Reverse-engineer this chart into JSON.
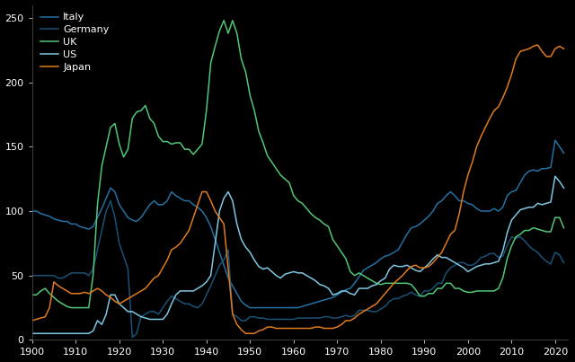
{
  "background_color": "#000000",
  "text_color": "#ffffff",
  "legend": {
    "US": "#7ec8e3",
    "Germany": "#1a5276",
    "Japan": "#e07b20",
    "Italy": "#2471a3",
    "UK": "#50c878"
  },
  "xlim": [
    1900,
    2023
  ],
  "ylim": [
    0,
    260
  ],
  "yticks": [
    0,
    50,
    100,
    150,
    200,
    250
  ],
  "xticks": [
    1900,
    1910,
    1920,
    1930,
    1940,
    1950,
    1960,
    1970,
    1980,
    1990,
    2000,
    2010,
    2020
  ],
  "series": {
    "US": {
      "years": [
        1900,
        1901,
        1902,
        1903,
        1904,
        1905,
        1906,
        1907,
        1908,
        1909,
        1910,
        1911,
        1912,
        1913,
        1914,
        1915,
        1916,
        1917,
        1918,
        1919,
        1920,
        1921,
        1922,
        1923,
        1924,
        1925,
        1926,
        1927,
        1928,
        1929,
        1930,
        1931,
        1932,
        1933,
        1934,
        1935,
        1936,
        1937,
        1938,
        1939,
        1940,
        1941,
        1942,
        1943,
        1944,
        1945,
        1946,
        1947,
        1948,
        1949,
        1950,
        1951,
        1952,
        1953,
        1954,
        1955,
        1956,
        1957,
        1958,
        1959,
        1960,
        1961,
        1962,
        1963,
        1964,
        1965,
        1966,
        1967,
        1968,
        1969,
        1970,
        1971,
        1972,
        1973,
        1974,
        1975,
        1976,
        1977,
        1978,
        1979,
        1980,
        1981,
        1982,
        1983,
        1984,
        1985,
        1986,
        1987,
        1988,
        1989,
        1990,
        1991,
        1992,
        1993,
        1994,
        1995,
        1996,
        1997,
        1998,
        1999,
        2000,
        2001,
        2002,
        2003,
        2004,
        2005,
        2006,
        2007,
        2008,
        2009,
        2010,
        2011,
        2012,
        2013,
        2014,
        2015,
        2016,
        2017,
        2018,
        2019,
        2020,
        2021,
        2022
      ],
      "values": [
        5,
        5,
        5,
        5,
        5,
        5,
        5,
        5,
        5,
        5,
        5,
        5,
        5,
        5,
        7,
        15,
        12,
        20,
        35,
        35,
        28,
        25,
        22,
        22,
        20,
        18,
        17,
        16,
        16,
        16,
        16,
        20,
        28,
        35,
        38,
        38,
        38,
        38,
        40,
        42,
        45,
        50,
        75,
        100,
        110,
        115,
        108,
        90,
        78,
        72,
        68,
        62,
        57,
        55,
        56,
        53,
        50,
        48,
        51,
        52,
        53,
        52,
        52,
        50,
        48,
        46,
        43,
        42,
        40,
        35,
        36,
        38,
        38,
        36,
        35,
        40,
        40,
        40,
        42,
        43,
        46,
        48,
        55,
        58,
        57,
        57,
        58,
        56,
        54,
        53,
        56,
        59,
        63,
        66,
        64,
        64,
        62,
        60,
        58,
        56,
        53,
        55,
        57,
        58,
        59,
        59,
        60,
        61,
        69,
        83,
        93,
        97,
        101,
        102,
        103,
        103,
        106,
        105,
        106,
        107,
        127,
        123,
        118
      ]
    },
    "Germany": {
      "years": [
        1900,
        1901,
        1902,
        1903,
        1904,
        1905,
        1906,
        1907,
        1908,
        1909,
        1910,
        1911,
        1912,
        1913,
        1914,
        1915,
        1916,
        1917,
        1918,
        1919,
        1920,
        1921,
        1922,
        1923,
        1924,
        1925,
        1926,
        1927,
        1928,
        1929,
        1930,
        1931,
        1932,
        1933,
        1934,
        1935,
        1936,
        1937,
        1938,
        1939,
        1940,
        1941,
        1942,
        1943,
        1944,
        1945,
        1946,
        1947,
        1948,
        1949,
        1950,
        1951,
        1952,
        1953,
        1954,
        1955,
        1956,
        1957,
        1958,
        1959,
        1960,
        1961,
        1962,
        1963,
        1964,
        1965,
        1966,
        1967,
        1968,
        1969,
        1970,
        1971,
        1972,
        1973,
        1974,
        1975,
        1976,
        1977,
        1978,
        1979,
        1980,
        1981,
        1982,
        1983,
        1984,
        1985,
        1986,
        1987,
        1988,
        1989,
        1990,
        1991,
        1992,
        1993,
        1994,
        1995,
        1996,
        1997,
        1998,
        1999,
        2000,
        2001,
        2002,
        2003,
        2004,
        2005,
        2006,
        2007,
        2008,
        2009,
        2010,
        2011,
        2012,
        2013,
        2014,
        2015,
        2016,
        2017,
        2018,
        2019,
        2020,
        2021,
        2022
      ],
      "values": [
        50,
        50,
        50,
        50,
        50,
        50,
        48,
        48,
        50,
        52,
        52,
        52,
        52,
        50,
        55,
        70,
        85,
        100,
        108,
        95,
        75,
        65,
        55,
        2,
        5,
        18,
        20,
        22,
        22,
        20,
        25,
        30,
        34,
        32,
        30,
        28,
        28,
        26,
        25,
        28,
        35,
        42,
        50,
        58,
        62,
        70,
        20,
        18,
        15,
        15,
        18,
        18,
        17,
        17,
        16,
        16,
        16,
        16,
        16,
        16,
        16,
        17,
        17,
        17,
        17,
        17,
        17,
        18,
        18,
        17,
        17,
        18,
        19,
        18,
        19,
        23,
        23,
        23,
        22,
        22,
        24,
        26,
        30,
        32,
        32,
        34,
        35,
        37,
        35,
        34,
        38,
        38,
        40,
        44,
        44,
        52,
        56,
        58,
        60,
        60,
        58,
        58,
        60,
        64,
        65,
        67,
        67,
        64,
        65,
        73,
        80,
        79,
        80,
        77,
        73,
        70,
        68,
        64,
        61,
        59,
        68,
        66,
        60
      ]
    },
    "Japan": {
      "years": [
        1900,
        1901,
        1902,
        1903,
        1904,
        1905,
        1906,
        1907,
        1908,
        1909,
        1910,
        1911,
        1912,
        1913,
        1914,
        1915,
        1916,
        1917,
        1918,
        1919,
        1920,
        1921,
        1922,
        1923,
        1924,
        1925,
        1926,
        1927,
        1928,
        1929,
        1930,
        1931,
        1932,
        1933,
        1934,
        1935,
        1936,
        1937,
        1938,
        1939,
        1940,
        1941,
        1942,
        1943,
        1944,
        1945,
        1946,
        1947,
        1948,
        1949,
        1950,
        1951,
        1952,
        1953,
        1954,
        1955,
        1956,
        1957,
        1958,
        1959,
        1960,
        1961,
        1962,
        1963,
        1964,
        1965,
        1966,
        1967,
        1968,
        1969,
        1970,
        1971,
        1972,
        1973,
        1974,
        1975,
        1976,
        1977,
        1978,
        1979,
        1980,
        1981,
        1982,
        1983,
        1984,
        1985,
        1986,
        1987,
        1988,
        1989,
        1990,
        1991,
        1992,
        1993,
        1994,
        1995,
        1996,
        1997,
        1998,
        1999,
        2000,
        2001,
        2002,
        2003,
        2004,
        2005,
        2006,
        2007,
        2008,
        2009,
        2010,
        2011,
        2012,
        2013,
        2014,
        2015,
        2016,
        2017,
        2018,
        2019,
        2020,
        2021,
        2022
      ],
      "values": [
        15,
        16,
        17,
        18,
        25,
        45,
        42,
        40,
        38,
        36,
        36,
        36,
        37,
        36,
        38,
        40,
        38,
        35,
        33,
        30,
        28,
        30,
        32,
        34,
        36,
        38,
        40,
        44,
        48,
        50,
        56,
        62,
        70,
        72,
        75,
        80,
        85,
        95,
        105,
        115,
        115,
        108,
        100,
        95,
        90,
        55,
        20,
        12,
        8,
        5,
        5,
        5,
        7,
        8,
        10,
        10,
        9,
        9,
        9,
        9,
        9,
        9,
        9,
        9,
        9,
        10,
        10,
        9,
        9,
        9,
        10,
        12,
        15,
        15,
        17,
        20,
        22,
        24,
        26,
        28,
        32,
        36,
        40,
        44,
        47,
        50,
        54,
        57,
        58,
        56,
        56,
        57,
        60,
        64,
        68,
        75,
        82,
        85,
        98,
        115,
        128,
        138,
        150,
        158,
        165,
        172,
        178,
        181,
        188,
        196,
        206,
        218,
        224,
        225,
        226,
        228,
        229,
        224,
        220,
        220,
        226,
        228,
        226
      ]
    },
    "Italy": {
      "years": [
        1900,
        1901,
        1902,
        1903,
        1904,
        1905,
        1906,
        1907,
        1908,
        1909,
        1910,
        1911,
        1912,
        1913,
        1914,
        1915,
        1916,
        1917,
        1918,
        1919,
        1920,
        1921,
        1922,
        1923,
        1924,
        1925,
        1926,
        1927,
        1928,
        1929,
        1930,
        1931,
        1932,
        1933,
        1934,
        1935,
        1936,
        1937,
        1938,
        1939,
        1940,
        1941,
        1942,
        1943,
        1944,
        1945,
        1946,
        1947,
        1948,
        1949,
        1950,
        1951,
        1952,
        1953,
        1954,
        1955,
        1956,
        1957,
        1958,
        1959,
        1960,
        1961,
        1962,
        1963,
        1964,
        1965,
        1966,
        1967,
        1968,
        1969,
        1970,
        1971,
        1972,
        1973,
        1974,
        1975,
        1976,
        1977,
        1978,
        1979,
        1980,
        1981,
        1982,
        1983,
        1984,
        1985,
        1986,
        1987,
        1988,
        1989,
        1990,
        1991,
        1992,
        1993,
        1994,
        1995,
        1996,
        1997,
        1998,
        1999,
        2000,
        2001,
        2002,
        2003,
        2004,
        2005,
        2006,
        2007,
        2008,
        2009,
        2010,
        2011,
        2012,
        2013,
        2014,
        2015,
        2016,
        2017,
        2018,
        2019,
        2020,
        2021,
        2022
      ],
      "values": [
        100,
        100,
        98,
        97,
        96,
        94,
        93,
        92,
        92,
        90,
        90,
        88,
        87,
        86,
        88,
        95,
        102,
        110,
        118,
        115,
        105,
        100,
        95,
        93,
        92,
        95,
        100,
        105,
        108,
        105,
        105,
        108,
        115,
        112,
        110,
        108,
        108,
        105,
        103,
        100,
        95,
        88,
        78,
        68,
        58,
        48,
        42,
        36,
        30,
        27,
        25,
        25,
        25,
        25,
        25,
        25,
        25,
        25,
        25,
        25,
        25,
        25,
        26,
        27,
        28,
        29,
        30,
        31,
        32,
        33,
        35,
        37,
        39,
        40,
        44,
        49,
        54,
        56,
        58,
        60,
        63,
        65,
        66,
        68,
        70,
        76,
        82,
        87,
        88,
        90,
        93,
        96,
        100,
        106,
        108,
        112,
        115,
        112,
        108,
        108,
        106,
        105,
        102,
        100,
        100,
        100,
        102,
        100,
        103,
        112,
        115,
        116,
        122,
        128,
        131,
        132,
        131,
        133,
        133,
        134,
        155,
        150,
        145
      ]
    },
    "UK": {
      "years": [
        1900,
        1901,
        1902,
        1903,
        1904,
        1905,
        1906,
        1907,
        1908,
        1909,
        1910,
        1911,
        1912,
        1913,
        1914,
        1915,
        1916,
        1917,
        1918,
        1919,
        1920,
        1921,
        1922,
        1923,
        1924,
        1925,
        1926,
        1927,
        1928,
        1929,
        1930,
        1931,
        1932,
        1933,
        1934,
        1935,
        1936,
        1937,
        1938,
        1939,
        1940,
        1941,
        1942,
        1943,
        1944,
        1945,
        1946,
        1947,
        1948,
        1949,
        1950,
        1951,
        1952,
        1953,
        1954,
        1955,
        1956,
        1957,
        1958,
        1959,
        1960,
        1961,
        1962,
        1963,
        1964,
        1965,
        1966,
        1967,
        1968,
        1969,
        1970,
        1971,
        1972,
        1973,
        1974,
        1975,
        1976,
        1977,
        1978,
        1979,
        1980,
        1981,
        1982,
        1983,
        1984,
        1985,
        1986,
        1987,
        1988,
        1989,
        1990,
        1991,
        1992,
        1993,
        1994,
        1995,
        1996,
        1997,
        1998,
        1999,
        2000,
        2001,
        2002,
        2003,
        2004,
        2005,
        2006,
        2007,
        2008,
        2009,
        2010,
        2011,
        2012,
        2013,
        2014,
        2015,
        2016,
        2017,
        2018,
        2019,
        2020,
        2021,
        2022
      ],
      "values": [
        35,
        35,
        38,
        40,
        36,
        33,
        30,
        28,
        26,
        25,
        25,
        25,
        25,
        25,
        50,
        105,
        135,
        150,
        165,
        168,
        152,
        142,
        148,
        172,
        177,
        178,
        182,
        172,
        168,
        158,
        154,
        154,
        152,
        153,
        153,
        148,
        148,
        144,
        148,
        152,
        178,
        215,
        228,
        240,
        248,
        238,
        248,
        238,
        218,
        208,
        190,
        178,
        162,
        153,
        143,
        138,
        133,
        128,
        125,
        122,
        112,
        108,
        106,
        102,
        98,
        95,
        93,
        90,
        88,
        78,
        73,
        68,
        63,
        53,
        50,
        52,
        50,
        48,
        46,
        44,
        43,
        44,
        44,
        44,
        44,
        44,
        44,
        43,
        39,
        34,
        34,
        36,
        36,
        40,
        40,
        44,
        44,
        40,
        40,
        38,
        37,
        37,
        38,
        38,
        38,
        38,
        38,
        40,
        48,
        63,
        73,
        80,
        82,
        85,
        85,
        87,
        86,
        85,
        84,
        84,
        95,
        95,
        87
      ]
    }
  }
}
